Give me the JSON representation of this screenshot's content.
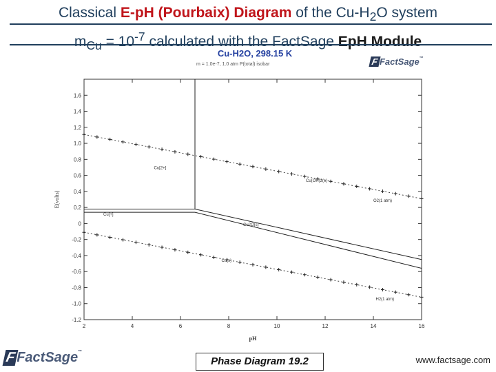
{
  "header": {
    "line1_pre": "Classical ",
    "line1_hl": "E-pH (Pourbaix) Diagram",
    "line1_post": " of the Cu-H",
    "line1_sub": "2",
    "line1_end": "O system",
    "line2_m": "m",
    "line2_sub": "Cu",
    "line2_eq": " = 10",
    "line2_sup": "-7",
    "line2_mid": " calculated with the FactSage ",
    "line2_bold": "EpH Module"
  },
  "diagram": {
    "subtitle": "Cu-H2O, 298.15 K",
    "params": "m = 1.0e-7, 1.0 atm P(total) isobar",
    "logo_text": "FactSage",
    "logo_tm": "™"
  },
  "chart_data": {
    "type": "line",
    "title": "Cu-H2O, 298.15 K",
    "xlabel": "pH",
    "ylabel": "E(volts)",
    "xlim": [
      2,
      16
    ],
    "ylim": [
      -1.2,
      1.8
    ],
    "x_ticks": [
      "2",
      "4",
      "6",
      "8",
      "10",
      "12",
      "14",
      "16"
    ],
    "y_ticks": [
      "1.6",
      "1.4",
      "1.2",
      "1.0",
      "0.8",
      "0.6",
      "0.4",
      "0.2",
      "0",
      "-0.2",
      "-0.4",
      "-0.6",
      "-0.8",
      "-1.0",
      "-1.2"
    ],
    "regions": [
      {
        "label": "Cu[2+]",
        "x": 4.9,
        "y": 0.68
      },
      {
        "label": "Cu(OH)2(s)",
        "x": 11.2,
        "y": 0.52
      },
      {
        "label": "Cu[+]",
        "x": 2.8,
        "y": 0.1
      },
      {
        "label": "Cu2O(s)",
        "x": 8.6,
        "y": -0.03
      },
      {
        "label": "Cu(s)",
        "x": 7.7,
        "y": -0.48
      },
      {
        "label": "O2(1 atm)",
        "x": 14.0,
        "y": 0.27
      },
      {
        "label": "H2(1 atm)",
        "x": 14.1,
        "y": -0.96
      }
    ],
    "series": [
      {
        "name": "O2(1 atm)",
        "style": "dashed",
        "x": [
          2.0,
          16.0
        ],
        "y": [
          1.11,
          0.31
        ]
      },
      {
        "name": "H2(1 atm)",
        "style": "dashed",
        "x": [
          2.0,
          16.0
        ],
        "y": [
          -0.11,
          -0.92
        ]
      },
      {
        "style": "solid",
        "x": [
          6.6,
          6.6
        ],
        "y": [
          1.8,
          0.18
        ]
      },
      {
        "style": "solid",
        "x": [
          2.0,
          6.6
        ],
        "y": [
          0.18,
          0.18
        ]
      },
      {
        "style": "solid",
        "x": [
          2.0,
          6.6
        ],
        "y": [
          0.14,
          0.14
        ]
      },
      {
        "style": "solid",
        "x": [
          6.6,
          16.0
        ],
        "y": [
          0.18,
          -0.45
        ]
      },
      {
        "style": "solid",
        "x": [
          6.6,
          16.0
        ],
        "y": [
          0.14,
          -0.56
        ]
      }
    ]
  },
  "footer": {
    "center": "Phase Diagram 19.2",
    "url": "www.factsage.com",
    "logo_text": "FactSage",
    "logo_tm": "™"
  }
}
